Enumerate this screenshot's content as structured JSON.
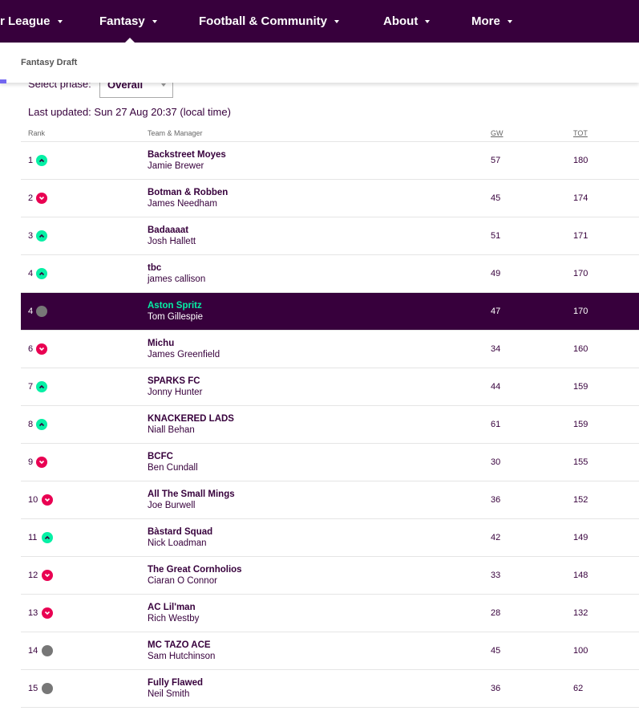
{
  "nav": [
    "r League",
    "Fantasy",
    "Football & Community",
    "About",
    "More"
  ],
  "panel_title": "Fantasy Draft",
  "phase_label": "Select phase:",
  "phase_value": "Overall",
  "last_updated": "Last updated: Sun 27 Aug 20:37 (local time)",
  "table": {
    "headers": [
      "Rank",
      "Team & Manager",
      "GW",
      "TOT"
    ],
    "highlight_row": 4,
    "rows": [
      {
        "rank": "1",
        "movement": "up",
        "team": "Backstreet Moyes",
        "manager": "Jamie Brewer",
        "gw": "57",
        "tot": "180"
      },
      {
        "rank": "2",
        "movement": "down",
        "team": "Botman & Robben",
        "manager": "James Needham",
        "gw": "45",
        "tot": "174"
      },
      {
        "rank": "3",
        "movement": "up",
        "team": "Badaaaat",
        "manager": "Josh Hallett",
        "gw": "51",
        "tot": "171"
      },
      {
        "rank": "4",
        "movement": "up",
        "team": "tbc",
        "manager": "james callison",
        "gw": "49",
        "tot": "170"
      },
      {
        "rank": "4",
        "movement": "same",
        "team": "Aston Spritz",
        "manager": "Tom Gillespie",
        "gw": "47",
        "tot": "170"
      },
      {
        "rank": "6",
        "movement": "down",
        "team": "Michu",
        "manager": "James Greenfield",
        "gw": "34",
        "tot": "160"
      },
      {
        "rank": "7",
        "movement": "up",
        "team": "SPARKS FC",
        "manager": "Jonny Hunter",
        "gw": "44",
        "tot": "159"
      },
      {
        "rank": "8",
        "movement": "up",
        "team": "KNACKERED LADS",
        "manager": "Niall Behan",
        "gw": "61",
        "tot": "159"
      },
      {
        "rank": "9",
        "movement": "down",
        "team": "BCFC",
        "manager": "Ben Cundall",
        "gw": "30",
        "tot": "155"
      },
      {
        "rank": "10",
        "movement": "down",
        "team": "All The Small Mings",
        "manager": "Joe Burwell",
        "gw": "36",
        "tot": "152"
      },
      {
        "rank": "11",
        "movement": "up",
        "team": "Bàstard Squad",
        "manager": "Nick Loadman",
        "gw": "42",
        "tot": "149"
      },
      {
        "rank": "12",
        "movement": "down",
        "team": "The Great Cornholios",
        "manager": "Ciaran O Connor",
        "gw": "33",
        "tot": "148"
      },
      {
        "rank": "13",
        "movement": "down",
        "team": "AC Lil'man",
        "manager": "Rich Westby",
        "gw": "28",
        "tot": "132"
      },
      {
        "rank": "14",
        "movement": "same",
        "team": "MC TAZO ACE",
        "manager": "Sam Hutchinson",
        "gw": "45",
        "tot": "100"
      },
      {
        "rank": "15",
        "movement": "same",
        "team": "Fully Flawed",
        "manager": "Neil Smith",
        "gw": "36",
        "tot": "62"
      }
    ]
  }
}
